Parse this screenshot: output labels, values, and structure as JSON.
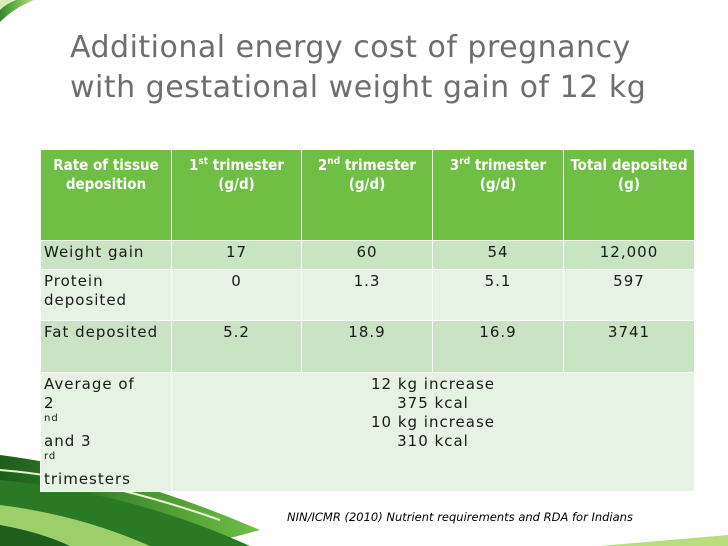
{
  "slide": {
    "title_line1": "Additional energy cost of pregnancy",
    "title_line2": "with gestational weight gain of 12 kg",
    "source": "NIN/ICMR (2010) Nutrient requirements and RDA for Indians"
  },
  "table": {
    "headers": {
      "col0": "Rate of tissue deposition",
      "col1_num": "1",
      "col1_sup": "st",
      "col1_rest": " trimester (g/d)",
      "col2_num": "2",
      "col2_sup": "nd",
      "col2_rest": " trimester (g/d)",
      "col3_num": "3",
      "col3_sup": "rd",
      "col3_rest": " trimester (g/d)",
      "col4": "Total deposited (g)"
    },
    "rows": [
      {
        "label": "Weight gain",
        "t1": "17",
        "t2": "60",
        "t3": "54",
        "total": "12,000"
      },
      {
        "label": "Protein deposited",
        "t1": "0",
        "t2": "1.3",
        "t3": "5.1",
        "total": "597"
      },
      {
        "label": "Fat deposited",
        "t1": "5.2",
        "t2": "18.9",
        "t3": "16.9",
        "total": "3741"
      }
    ],
    "avg_row": {
      "label_a": "Average of",
      "label_b": "2",
      "label_b_sup": "nd",
      "label_c": " and 3",
      "label_c_sup": "rd",
      "label_d": "trimesters",
      "line1": "12 kg increase",
      "line2": "375 kcal",
      "line3": "10 kg increase",
      "line4": "310 kcal"
    }
  },
  "colors": {
    "header": "#6fbf45",
    "row_a": "#c9e4c2",
    "row_b": "#e6f2e4",
    "title": "#6e6e6e"
  }
}
